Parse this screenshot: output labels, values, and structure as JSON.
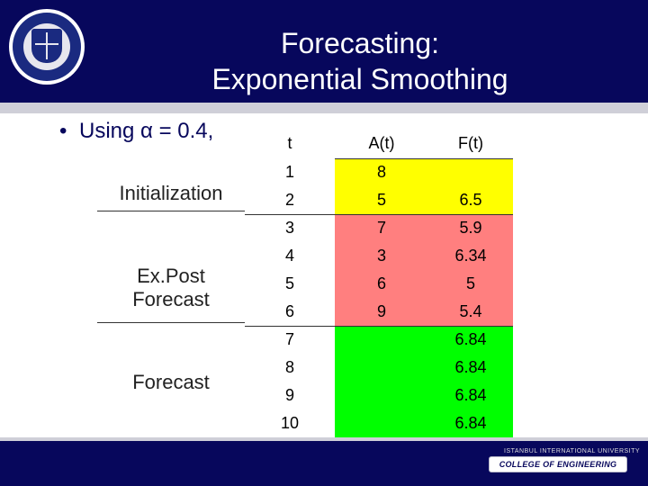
{
  "slide": {
    "title_line1": "Forecasting:",
    "title_line2": "Exponential Smoothing",
    "bullet": "Using α = 0.4,",
    "bullet_marker": "•"
  },
  "labels": {
    "initialization": "Initialization",
    "expost_line1": "Ex.Post",
    "expost_line2": "Forecast",
    "forecast": "Forecast"
  },
  "table": {
    "headers": [
      "t",
      "A(t)",
      "F(t)"
    ],
    "rows": [
      {
        "t": "1",
        "a": "8",
        "f": "",
        "section": "initialization"
      },
      {
        "t": "2",
        "a": "5",
        "f": "6.5",
        "section": "initialization"
      },
      {
        "t": "3",
        "a": "7",
        "f": "5.9",
        "section": "expost"
      },
      {
        "t": "4",
        "a": "3",
        "f": "6.34",
        "section": "expost"
      },
      {
        "t": "5",
        "a": "6",
        "f": "5",
        "section": "expost"
      },
      {
        "t": "6",
        "a": "9",
        "f": "5.4",
        "section": "expost"
      },
      {
        "t": "7",
        "a": "",
        "f": "6.84",
        "section": "forecast"
      },
      {
        "t": "8",
        "a": "",
        "f": "6.84",
        "section": "forecast"
      },
      {
        "t": "9",
        "a": "",
        "f": "6.84",
        "section": "forecast"
      },
      {
        "t": "10",
        "a": "",
        "f": "6.84",
        "section": "forecast"
      }
    ],
    "colors": {
      "initialization": "#ffff00",
      "expost": "#ff7f7f",
      "forecast": "#00ff00"
    }
  },
  "footer": {
    "logo_small": "ISTANBUL INTERNATIONAL UNIVERSITY",
    "logo_text": "COLLEGE OF ENGINEERING"
  }
}
